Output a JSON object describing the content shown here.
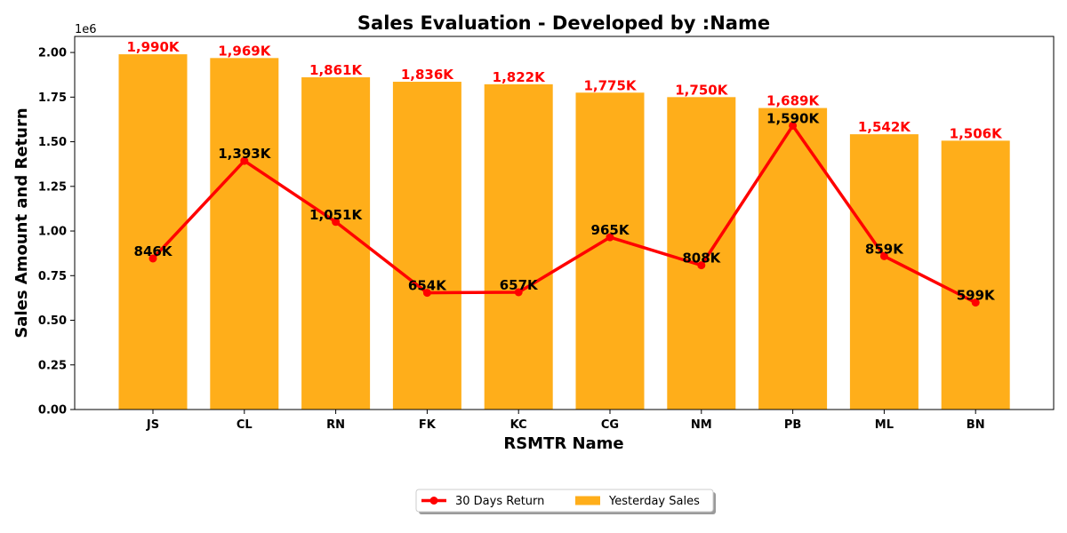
{
  "chart_data": {
    "type": "bar",
    "title": "Sales Evaluation - Developed by :Name",
    "xlabel": "RSMTR Name",
    "ylabel": "Sales Amount and Return",
    "y_offset_label": "1e6",
    "ylim": [
      0,
      2090000
    ],
    "y_ticks": [
      0,
      250000,
      500000,
      750000,
      1000000,
      1250000,
      1500000,
      1750000,
      2000000
    ],
    "y_tick_labels": [
      "0.00",
      "0.25",
      "0.50",
      "0.75",
      "1.00",
      "1.25",
      "1.50",
      "1.75",
      "2.00"
    ],
    "categories": [
      "JS",
      "CL",
      "RN",
      "FK",
      "KC",
      "CG",
      "NM",
      "PB",
      "ML",
      "BN"
    ],
    "legend_position": "bottom-center",
    "series": [
      {
        "name": "Yesterday Sales",
        "kind": "bar",
        "color": "#ffae1a",
        "values": [
          1990000,
          1969000,
          1861000,
          1836000,
          1822000,
          1775000,
          1750000,
          1689000,
          1542000,
          1506000
        ],
        "labels": [
          "1,990K",
          "1,969K",
          "1,861K",
          "1,836K",
          "1,822K",
          "1,775K",
          "1,750K",
          "1,689K",
          "1,542K",
          "1,506K"
        ],
        "label_color": "#ff0000"
      },
      {
        "name": "30 Days Return",
        "kind": "line",
        "color": "#ff0000",
        "values": [
          846000,
          1393000,
          1051000,
          654000,
          657000,
          965000,
          808000,
          1590000,
          859000,
          599000
        ],
        "labels": [
          "846K",
          "1,393K",
          "1,051K",
          "654K",
          "657K",
          "965K",
          "808K",
          "1,590K",
          "859K",
          "599K"
        ],
        "label_color": "#000000"
      }
    ]
  }
}
